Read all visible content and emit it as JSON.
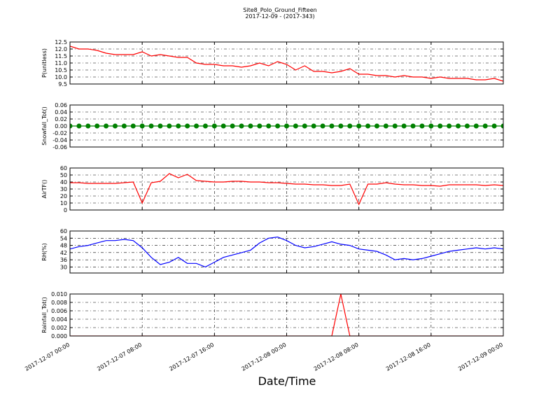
{
  "chart_data": [
    {
      "type": "line",
      "title": "Site8_Polo_Ground_Fifteen",
      "subtitle": "2017-12-09 - (2017-343)",
      "ylabel": "P(unitless)",
      "x": [
        "2017-12-07 00:00",
        "2017-12-07 01:00",
        "2017-12-07 02:00",
        "2017-12-07 03:00",
        "2017-12-07 04:00",
        "2017-12-07 05:00",
        "2017-12-07 06:00",
        "2017-12-07 07:00",
        "2017-12-07 08:00",
        "2017-12-07 09:00",
        "2017-12-07 10:00",
        "2017-12-07 11:00",
        "2017-12-07 12:00",
        "2017-12-07 13:00",
        "2017-12-07 14:00",
        "2017-12-07 15:00",
        "2017-12-07 16:00",
        "2017-12-07 17:00",
        "2017-12-07 18:00",
        "2017-12-07 19:00",
        "2017-12-07 20:00",
        "2017-12-07 21:00",
        "2017-12-07 22:00",
        "2017-12-07 23:00",
        "2017-12-08 00:00",
        "2017-12-08 01:00",
        "2017-12-08 02:00",
        "2017-12-08 03:00",
        "2017-12-08 04:00",
        "2017-12-08 05:00",
        "2017-12-08 06:00",
        "2017-12-08 07:00",
        "2017-12-08 08:00",
        "2017-12-08 09:00",
        "2017-12-08 10:00",
        "2017-12-08 11:00",
        "2017-12-08 12:00",
        "2017-12-08 13:00",
        "2017-12-08 14:00",
        "2017-12-08 15:00",
        "2017-12-08 16:00",
        "2017-12-08 17:00",
        "2017-12-08 18:00",
        "2017-12-08 19:00",
        "2017-12-08 20:00",
        "2017-12-08 21:00",
        "2017-12-08 22:00",
        "2017-12-08 23:00",
        "2017-12-09 00:00"
      ],
      "values": [
        12.2,
        12.0,
        12.0,
        11.9,
        11.7,
        11.6,
        11.6,
        11.6,
        11.8,
        11.5,
        11.6,
        11.5,
        11.4,
        11.4,
        11.0,
        10.9,
        10.9,
        10.8,
        10.8,
        10.7,
        10.8,
        11.0,
        10.8,
        11.1,
        10.9,
        10.5,
        10.8,
        10.4,
        10.4,
        10.3,
        10.4,
        10.6,
        10.2,
        10.2,
        10.1,
        10.1,
        10.0,
        10.1,
        10.0,
        10.0,
        9.9,
        10.0,
        9.9,
        9.9,
        9.9,
        9.8,
        9.8,
        9.9,
        9.7
      ],
      "color": "#ff0000",
      "marker": false,
      "xlim": [
        "2017-12-07 00:00",
        "2017-12-09 00:00"
      ],
      "xticks": [
        "2017-12-07 00:00",
        "2017-12-07 08:00",
        "2017-12-07 16:00",
        "2017-12-08 00:00",
        "2017-12-08 08:00",
        "2017-12-08 16:00",
        "2017-12-09 00:00"
      ],
      "ylim": [
        9.5,
        12.5
      ],
      "yticks": [
        9.5,
        {
          "value": 10,
          "label": "10.0"
        },
        10.5,
        {
          "value": 11,
          "label": "11.0"
        },
        11.5,
        {
          "value": 12,
          "label": "12.0"
        },
        12.5
      ],
      "grid": true
    },
    {
      "type": "line",
      "ylabel": "Snowfall_Tot()",
      "x": [
        "2017-12-07 00:00",
        "2017-12-07 01:00",
        "2017-12-07 02:00",
        "2017-12-07 03:00",
        "2017-12-07 04:00",
        "2017-12-07 05:00",
        "2017-12-07 06:00",
        "2017-12-07 07:00",
        "2017-12-07 08:00",
        "2017-12-07 09:00",
        "2017-12-07 10:00",
        "2017-12-07 11:00",
        "2017-12-07 12:00",
        "2017-12-07 13:00",
        "2017-12-07 14:00",
        "2017-12-07 15:00",
        "2017-12-07 16:00",
        "2017-12-07 17:00",
        "2017-12-07 18:00",
        "2017-12-07 19:00",
        "2017-12-07 20:00",
        "2017-12-07 21:00",
        "2017-12-07 22:00",
        "2017-12-07 23:00",
        "2017-12-08 00:00",
        "2017-12-08 01:00",
        "2017-12-08 02:00",
        "2017-12-08 03:00",
        "2017-12-08 04:00",
        "2017-12-08 05:00",
        "2017-12-08 06:00",
        "2017-12-08 07:00",
        "2017-12-08 08:00",
        "2017-12-08 09:00",
        "2017-12-08 10:00",
        "2017-12-08 11:00",
        "2017-12-08 12:00",
        "2017-12-08 13:00",
        "2017-12-08 14:00",
        "2017-12-08 15:00",
        "2017-12-08 16:00",
        "2017-12-08 17:00",
        "2017-12-08 18:00",
        "2017-12-08 19:00",
        "2017-12-08 20:00",
        "2017-12-08 21:00",
        "2017-12-08 22:00",
        "2017-12-08 23:00",
        "2017-12-09 00:00"
      ],
      "values": [
        0,
        0,
        0,
        0,
        0,
        0,
        0,
        0,
        0,
        0,
        0,
        0,
        0,
        0,
        0,
        0,
        0,
        0,
        0,
        0,
        0,
        0,
        0,
        0,
        0,
        0,
        0,
        0,
        0,
        0,
        0,
        0,
        0,
        0,
        0,
        0,
        0,
        0,
        0,
        0,
        0,
        0,
        0,
        0,
        0,
        0,
        0,
        0,
        0
      ],
      "color": "#008000",
      "marker": true,
      "xlim": [
        "2017-12-07 00:00",
        "2017-12-09 00:00"
      ],
      "xticks": [
        "2017-12-07 00:00",
        "2017-12-07 08:00",
        "2017-12-07 16:00",
        "2017-12-08 00:00",
        "2017-12-08 08:00",
        "2017-12-08 16:00",
        "2017-12-09 00:00"
      ],
      "ylim": [
        -0.06,
        0.06
      ],
      "yticks": [
        -0.06,
        -0.04,
        -0.02,
        {
          "value": 0,
          "label": "0.00"
        },
        0.02,
        0.04,
        0.06
      ],
      "grid": true
    },
    {
      "type": "line",
      "ylabel": "AirTF()",
      "x": [
        "2017-12-07 00:00",
        "2017-12-07 01:00",
        "2017-12-07 02:00",
        "2017-12-07 03:00",
        "2017-12-07 04:00",
        "2017-12-07 05:00",
        "2017-12-07 06:00",
        "2017-12-07 07:00",
        "2017-12-07 08:00",
        "2017-12-07 09:00",
        "2017-12-07 10:00",
        "2017-12-07 11:00",
        "2017-12-07 12:00",
        "2017-12-07 13:00",
        "2017-12-07 14:00",
        "2017-12-07 15:00",
        "2017-12-07 16:00",
        "2017-12-07 17:00",
        "2017-12-07 18:00",
        "2017-12-07 19:00",
        "2017-12-07 20:00",
        "2017-12-07 21:00",
        "2017-12-07 22:00",
        "2017-12-07 23:00",
        "2017-12-08 00:00",
        "2017-12-08 01:00",
        "2017-12-08 02:00",
        "2017-12-08 03:00",
        "2017-12-08 04:00",
        "2017-12-08 05:00",
        "2017-12-08 06:00",
        "2017-12-08 07:00",
        "2017-12-08 08:00",
        "2017-12-08 09:00",
        "2017-12-08 10:00",
        "2017-12-08 11:00",
        "2017-12-08 12:00",
        "2017-12-08 13:00",
        "2017-12-08 14:00",
        "2017-12-08 15:00",
        "2017-12-08 16:00",
        "2017-12-08 17:00",
        "2017-12-08 18:00",
        "2017-12-08 19:00",
        "2017-12-08 20:00",
        "2017-12-08 21:00",
        "2017-12-08 22:00",
        "2017-12-08 23:00",
        "2017-12-09 00:00"
      ],
      "values": [
        39,
        39,
        38,
        38,
        38,
        38,
        39,
        40,
        10,
        39,
        41,
        52,
        46,
        51,
        42,
        41,
        40,
        40,
        41,
        41,
        40,
        40,
        39,
        39,
        38,
        37,
        37,
        36,
        36,
        35,
        35,
        37,
        8,
        37,
        37,
        39,
        37,
        36,
        36,
        35,
        35,
        34,
        36,
        36,
        36,
        36,
        35,
        36,
        35
      ],
      "color": "#ff0000",
      "marker": false,
      "xlim": [
        "2017-12-07 00:00",
        "2017-12-09 00:00"
      ],
      "xticks": [
        "2017-12-07 00:00",
        "2017-12-07 08:00",
        "2017-12-07 16:00",
        "2017-12-08 00:00",
        "2017-12-08 08:00",
        "2017-12-08 16:00",
        "2017-12-09 00:00"
      ],
      "ylim": [
        0,
        60
      ],
      "yticks": [
        0,
        10,
        20,
        30,
        40,
        50,
        60
      ],
      "grid": true
    },
    {
      "type": "line",
      "ylabel": "RH(%)",
      "x": [
        "2017-12-07 00:00",
        "2017-12-07 01:00",
        "2017-12-07 02:00",
        "2017-12-07 03:00",
        "2017-12-07 04:00",
        "2017-12-07 05:00",
        "2017-12-07 06:00",
        "2017-12-07 07:00",
        "2017-12-07 08:00",
        "2017-12-07 09:00",
        "2017-12-07 10:00",
        "2017-12-07 11:00",
        "2017-12-07 12:00",
        "2017-12-07 13:00",
        "2017-12-07 14:00",
        "2017-12-07 15:00",
        "2017-12-07 16:00",
        "2017-12-07 17:00",
        "2017-12-07 18:00",
        "2017-12-07 19:00",
        "2017-12-07 20:00",
        "2017-12-07 21:00",
        "2017-12-07 22:00",
        "2017-12-07 23:00",
        "2017-12-08 00:00",
        "2017-12-08 01:00",
        "2017-12-08 02:00",
        "2017-12-08 03:00",
        "2017-12-08 04:00",
        "2017-12-08 05:00",
        "2017-12-08 06:00",
        "2017-12-08 07:00",
        "2017-12-08 08:00",
        "2017-12-08 09:00",
        "2017-12-08 10:00",
        "2017-12-08 11:00",
        "2017-12-08 12:00",
        "2017-12-08 13:00",
        "2017-12-08 14:00",
        "2017-12-08 15:00",
        "2017-12-08 16:00",
        "2017-12-08 17:00",
        "2017-12-08 18:00",
        "2017-12-08 19:00",
        "2017-12-08 20:00",
        "2017-12-08 21:00",
        "2017-12-08 22:00",
        "2017-12-08 23:00",
        "2017-12-09 00:00"
      ],
      "values": [
        45,
        47,
        48,
        50,
        52,
        52,
        53,
        52,
        46,
        38,
        32,
        34,
        38,
        33,
        33,
        30,
        34,
        38,
        40,
        42,
        44,
        50,
        54,
        55,
        52,
        48,
        46,
        47,
        49,
        51,
        49,
        48,
        45,
        44,
        43,
        40,
        36,
        37,
        36,
        37,
        39,
        41,
        43,
        44,
        45,
        46,
        45,
        46,
        45
      ],
      "color": "#0000ff",
      "marker": false,
      "xlim": [
        "2017-12-07 00:00",
        "2017-12-09 00:00"
      ],
      "xticks": [
        "2017-12-07 00:00",
        "2017-12-07 08:00",
        "2017-12-07 16:00",
        "2017-12-08 00:00",
        "2017-12-08 08:00",
        "2017-12-08 16:00",
        "2017-12-09 00:00"
      ],
      "ylim": [
        25,
        60
      ],
      "yticks": [
        30,
        36,
        42,
        48,
        54,
        60
      ],
      "grid": true
    },
    {
      "type": "line",
      "ylabel": "Rainfall_Tot()",
      "xlabel": "Date/Time",
      "x": [
        "2017-12-07 00:00",
        "2017-12-07 01:00",
        "2017-12-07 02:00",
        "2017-12-07 03:00",
        "2017-12-07 04:00",
        "2017-12-07 05:00",
        "2017-12-07 06:00",
        "2017-12-07 07:00",
        "2017-12-07 08:00",
        "2017-12-07 09:00",
        "2017-12-07 10:00",
        "2017-12-07 11:00",
        "2017-12-07 12:00",
        "2017-12-07 13:00",
        "2017-12-07 14:00",
        "2017-12-07 15:00",
        "2017-12-07 16:00",
        "2017-12-07 17:00",
        "2017-12-07 18:00",
        "2017-12-07 19:00",
        "2017-12-07 20:00",
        "2017-12-07 21:00",
        "2017-12-07 22:00",
        "2017-12-07 23:00",
        "2017-12-08 00:00",
        "2017-12-08 01:00",
        "2017-12-08 02:00",
        "2017-12-08 03:00",
        "2017-12-08 04:00",
        "2017-12-08 05:00",
        "2017-12-08 06:00",
        "2017-12-08 07:00",
        "2017-12-08 08:00",
        "2017-12-08 09:00",
        "2017-12-08 10:00",
        "2017-12-08 11:00",
        "2017-12-08 12:00",
        "2017-12-08 13:00",
        "2017-12-08 14:00",
        "2017-12-08 15:00",
        "2017-12-08 16:00",
        "2017-12-08 17:00",
        "2017-12-08 18:00",
        "2017-12-08 19:00",
        "2017-12-08 20:00",
        "2017-12-08 21:00",
        "2017-12-08 22:00",
        "2017-12-08 23:00",
        "2017-12-09 00:00"
      ],
      "values": [
        0,
        0,
        0,
        0,
        0,
        0,
        0,
        0,
        0,
        0,
        0,
        0,
        0,
        0,
        0,
        0,
        0,
        0,
        0,
        0,
        0,
        0,
        0,
        0,
        0,
        0,
        0,
        0,
        0,
        0,
        0.01,
        0,
        0,
        0,
        0,
        0,
        0,
        0,
        0,
        0,
        0,
        0,
        0,
        0,
        0,
        0,
        0,
        0,
        0
      ],
      "color": "#ff0000",
      "marker": false,
      "xlim": [
        "2017-12-07 00:00",
        "2017-12-09 00:00"
      ],
      "xticks": [
        "2017-12-07 00:00",
        "2017-12-07 08:00",
        "2017-12-07 16:00",
        "2017-12-08 00:00",
        "2017-12-08 08:00",
        "2017-12-08 16:00",
        "2017-12-09 00:00"
      ],
      "ylim": [
        0,
        0.01
      ],
      "yticks": [
        {
          "value": 0,
          "label": "0.000"
        },
        0.002,
        0.004,
        0.006,
        0.008,
        {
          "value": 0.01,
          "label": "0.010"
        }
      ],
      "grid": true,
      "show_xtick_labels": true
    }
  ]
}
